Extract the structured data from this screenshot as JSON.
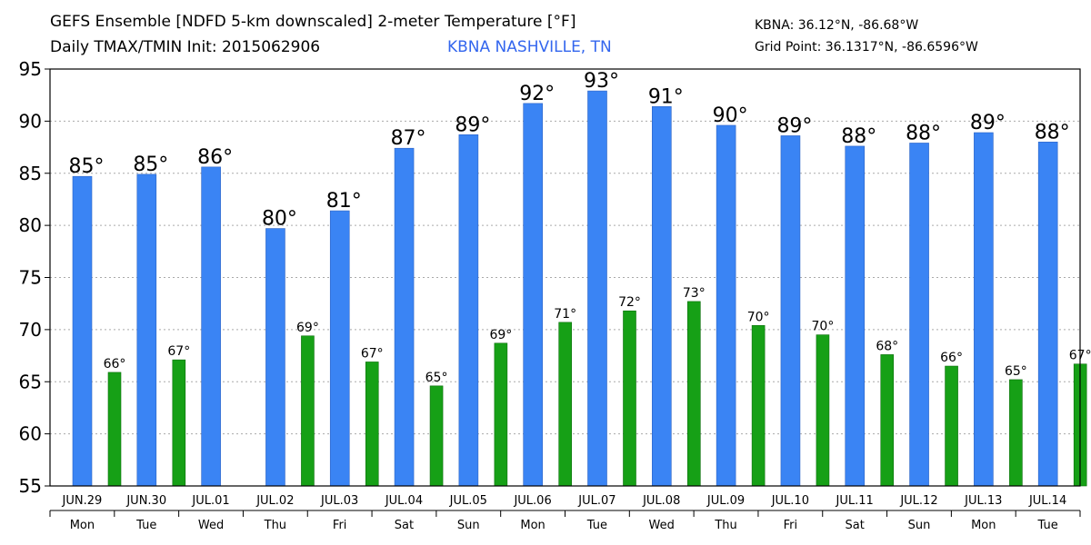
{
  "header": {
    "title_line1": "GEFS Ensemble [NDFD 5-km downscaled] 2-meter Temperature [°F]",
    "title_line2": "Daily TMAX/TMIN Init: 2015062906",
    "station": "KBNA NASHVILLE, TN",
    "coord_line1": "KBNA: 36.12°N, -86.68°W",
    "coord_line2": "Grid Point: 36.1317°N, -86.6596°W"
  },
  "colors": {
    "max_bar": "#3a84f4",
    "min_bar": "#16a016",
    "station_text": "#3366ee",
    "grid": "#aaaaaa"
  },
  "chart_data": {
    "type": "bar",
    "title": "GEFS Ensemble [NDFD 5-km downscaled] 2-meter Temperature [°F]",
    "categories": [
      "JUN.29",
      "JUN.30",
      "JUL.01",
      "JUL.02",
      "JUL.03",
      "JUL.04",
      "JUL.05",
      "JUL.06",
      "JUL.07",
      "JUL.08",
      "JUL.09",
      "JUL.10",
      "JUL.11",
      "JUL.12",
      "JUL.13",
      "JUL.14"
    ],
    "weekdays": [
      "Mon",
      "Tue",
      "Wed",
      "Thu",
      "Fri",
      "Sat",
      "Sun",
      "Mon",
      "Tue",
      "Wed",
      "Thu",
      "Fri",
      "Sat",
      "Sun",
      "Mon",
      "Tue"
    ],
    "series": [
      {
        "name": "TMAX",
        "values": [
          84.7,
          84.9,
          85.6,
          79.7,
          81.4,
          87.4,
          88.7,
          91.7,
          92.9,
          91.4,
          89.6,
          88.6,
          87.6,
          87.9,
          88.9,
          88.0
        ],
        "labels": [
          "85°",
          "85°",
          "86°",
          "80°",
          "81°",
          "87°",
          "89°",
          "92°",
          "93°",
          "91°",
          "90°",
          "89°",
          "88°",
          "88°",
          "89°",
          "88°"
        ]
      },
      {
        "name": "TMIN",
        "values": [
          65.9,
          67.1,
          null,
          69.4,
          66.9,
          64.6,
          68.7,
          70.7,
          71.8,
          72.7,
          70.4,
          69.5,
          67.6,
          66.5,
          65.2,
          66.7
        ],
        "labels": [
          "66°",
          "67°",
          null,
          "69°",
          "67°",
          "65°",
          "69°",
          "71°",
          "72°",
          "73°",
          "70°",
          "70°",
          "68°",
          "66°",
          "65°",
          "67°"
        ]
      }
    ],
    "yticks": [
      55,
      60,
      65,
      70,
      75,
      80,
      85,
      90,
      95
    ],
    "ylim": [
      55,
      95
    ],
    "grid": true
  }
}
